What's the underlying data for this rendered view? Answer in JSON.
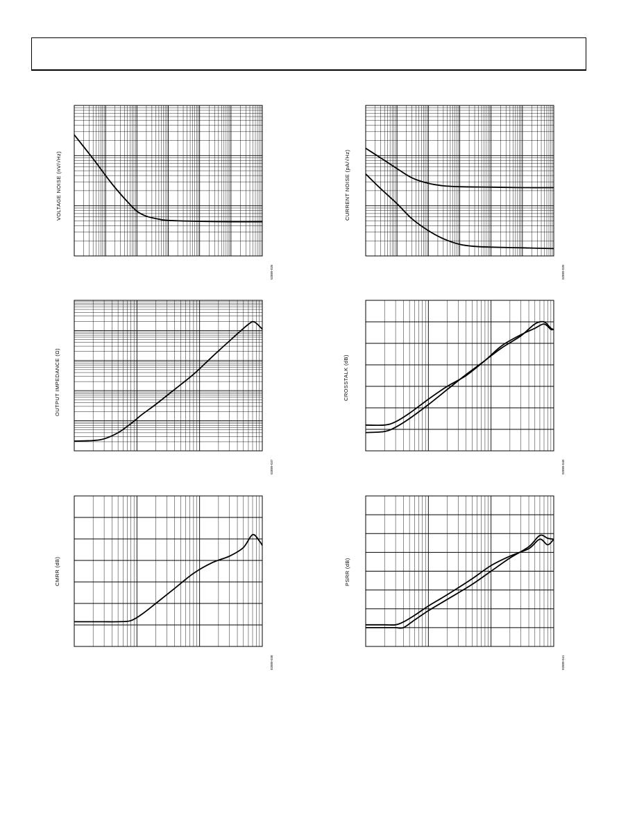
{
  "page": {
    "header": ""
  },
  "chart_data": [
    {
      "id": "voltage-noise",
      "type": "line",
      "ylabel": "VOLTAGE NOISE (nV/√Hz)",
      "figure_id": "02889-026",
      "xscale": "log",
      "yscale": "log",
      "xlim": [
        1,
        1000000
      ],
      "ylim": [
        1,
        1000
      ],
      "grid": true,
      "series": [
        {
          "x": [
            1,
            2,
            5,
            10,
            20,
            50,
            100,
            200,
            500,
            1000,
            10000,
            100000,
            1000000
          ],
          "y": [
            260,
            150,
            72,
            40,
            23,
            12,
            7.8,
            6.2,
            5.4,
            5.1,
            4.9,
            4.8,
            4.8
          ]
        }
      ]
    },
    {
      "id": "current-noise",
      "type": "line",
      "ylabel": "CURRENT NOISE (pA/√Hz)",
      "figure_id": "02889-039",
      "xscale": "log",
      "yscale": "log",
      "xlim": [
        1,
        1000000
      ],
      "ylim": [
        0.1,
        100
      ],
      "grid": true,
      "series": [
        {
          "x": [
            1,
            3,
            10,
            30,
            100,
            300,
            1000,
            10000,
            100000,
            1000000
          ],
          "y": [
            14,
            9,
            5.5,
            3.6,
            2.8,
            2.5,
            2.4,
            2.35,
            2.3,
            2.3
          ]
        },
        {
          "x": [
            1,
            3,
            10,
            30,
            100,
            300,
            1000,
            3000,
            10000,
            100000,
            1000000
          ],
          "y": [
            4.3,
            2.2,
            1.1,
            0.55,
            0.32,
            0.22,
            0.17,
            0.155,
            0.15,
            0.145,
            0.14
          ]
        }
      ]
    },
    {
      "id": "output-impedance",
      "type": "line",
      "ylabel": "OUTPUT IMPEDANCE (Ω)",
      "figure_id": "02889-037",
      "xscale": "log",
      "yscale": "log",
      "xlim": [
        1,
        1000
      ],
      "ylim": [
        0.01,
        1000
      ],
      "grid": true,
      "series": [
        {
          "x": [
            1,
            2,
            3,
            5,
            8,
            12,
            20,
            40,
            80,
            150,
            300,
            600,
            750,
            1000
          ],
          "y": [
            0.021,
            0.022,
            0.025,
            0.04,
            0.08,
            0.16,
            0.35,
            1.1,
            3.5,
            12,
            45,
            160,
            190,
            110
          ]
        }
      ]
    },
    {
      "id": "crosstalk",
      "type": "line",
      "ylabel": "CROSSTALK (dB)",
      "figure_id": "02889-040",
      "xscale": "log",
      "yscale": "linear",
      "xlim": [
        1,
        1000
      ],
      "ylim": [
        -160,
        -20
      ],
      "grid": true,
      "series": [
        {
          "x": [
            1,
            2,
            3,
            5,
            10,
            20,
            40,
            80,
            150,
            300,
            500,
            700,
            900,
            1000
          ],
          "y": [
            -136,
            -136,
            -133,
            -125,
            -112,
            -100,
            -90,
            -76,
            -62,
            -52,
            -46,
            -42,
            -47,
            -47
          ]
        },
        {
          "x": [
            1,
            2,
            3,
            5,
            10,
            20,
            40,
            80,
            150,
            300,
            500,
            700,
            900,
            1000
          ],
          "y": [
            -143,
            -142,
            -138,
            -130,
            -117,
            -103,
            -89,
            -76,
            -64,
            -53,
            -42,
            -40,
            -46,
            -47
          ]
        }
      ]
    },
    {
      "id": "cmrr",
      "type": "line",
      "ylabel": "CMRR (dB)",
      "figure_id": "02889-038",
      "xscale": "log",
      "yscale": "linear",
      "xlim": [
        1,
        1000
      ],
      "ylim": [
        -140,
        0
      ],
      "grid": true,
      "series": [
        {
          "x": [
            1,
            2,
            3,
            5,
            8,
            12,
            20,
            40,
            80,
            160,
            300,
            500,
            700,
            900,
            1000
          ],
          "y": [
            -117,
            -117,
            -117,
            -117,
            -116,
            -110,
            -100,
            -86,
            -72,
            -62,
            -56,
            -48,
            -36,
            -42,
            -46
          ]
        }
      ]
    },
    {
      "id": "psrr",
      "type": "line",
      "ylabel": "PSRR (dB)",
      "figure_id": "02889-041",
      "xscale": "log",
      "yscale": "linear",
      "xlim": [
        1,
        1000
      ],
      "ylim": [
        -160,
        0
      ],
      "grid": true,
      "series": [
        {
          "x": [
            1,
            2,
            3,
            4,
            6,
            10,
            20,
            50,
            100,
            200,
            400,
            600,
            800,
            1000
          ],
          "y": [
            -137,
            -137,
            -137,
            -134,
            -127,
            -117,
            -105,
            -88,
            -74,
            -64,
            -56,
            -46,
            -52,
            -46
          ]
        },
        {
          "x": [
            1,
            2,
            3,
            4,
            6,
            10,
            20,
            50,
            100,
            200,
            400,
            600,
            800,
            1000
          ],
          "y": [
            -140,
            -140,
            -140,
            -140,
            -132,
            -122,
            -110,
            -94,
            -80,
            -66,
            -54,
            -42,
            -45,
            -46
          ]
        }
      ]
    }
  ]
}
